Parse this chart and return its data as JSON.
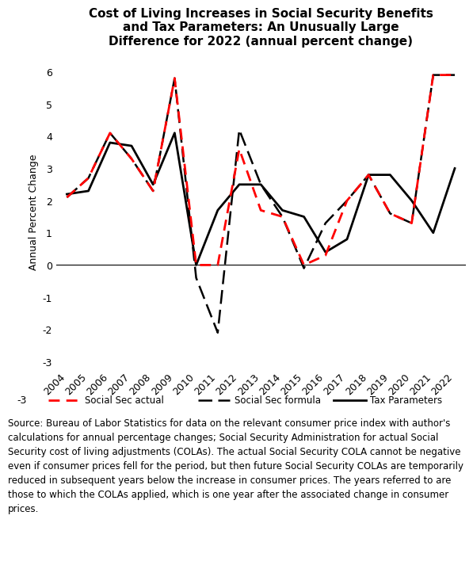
{
  "title": "Cost of Living Increases in Social Security Benefits\nand Tax Parameters: An Unusually Large\nDifference for 2022 (annual percent change)",
  "ylabel": "Annual Percent Change",
  "years": [
    2004,
    2005,
    2006,
    2007,
    2008,
    2009,
    2010,
    2011,
    2012,
    2013,
    2014,
    2015,
    2016,
    2017,
    2018,
    2019,
    2020,
    2021,
    2022
  ],
  "ss_actual": [
    2.1,
    2.7,
    4.1,
    3.3,
    2.3,
    5.8,
    0.0,
    0.0,
    3.6,
    1.7,
    1.5,
    0.0,
    0.3,
    2.0,
    2.8,
    1.6,
    1.3,
    5.9,
    5.9
  ],
  "ss_formula": [
    2.1,
    2.7,
    4.1,
    3.3,
    2.3,
    5.8,
    -0.4,
    -2.1,
    4.2,
    2.5,
    1.5,
    -0.1,
    1.3,
    2.0,
    2.8,
    1.6,
    1.3,
    5.9,
    5.9
  ],
  "tax_params": [
    2.2,
    2.3,
    3.8,
    3.7,
    2.5,
    4.1,
    0.0,
    1.7,
    2.5,
    2.5,
    1.7,
    1.5,
    0.4,
    0.8,
    2.8,
    2.8,
    2.0,
    1.0,
    3.0
  ],
  "ss_actual_color": "#ff0000",
  "ss_formula_color": "#000000",
  "tax_params_color": "#000000",
  "ylim": [
    -3.2,
    6.5
  ],
  "yticks": [
    -3,
    -2,
    -1,
    0,
    1,
    2,
    3,
    4,
    5,
    6
  ],
  "source_text": "Source: Bureau of Labor Statistics for data on the relevant consumer price index with author's calculations for annual percentage changes; Social Security Administration for actual Social Security cost of living adjustments (COLAs). The actual Social Security COLA cannot be negative even if consumer prices fell for the period, but then future Social Security COLAs are temporarily reduced in subsequent years below the increase in consumer prices. The years referred to are those to which the COLAs applied, which is one year after the associated change in consumer prices.",
  "background_color": "#ffffff",
  "title_fontsize": 11,
  "tick_fontsize": 9,
  "ylabel_fontsize": 9,
  "source_fontsize": 8.5,
  "legend_fontsize": 8.5
}
